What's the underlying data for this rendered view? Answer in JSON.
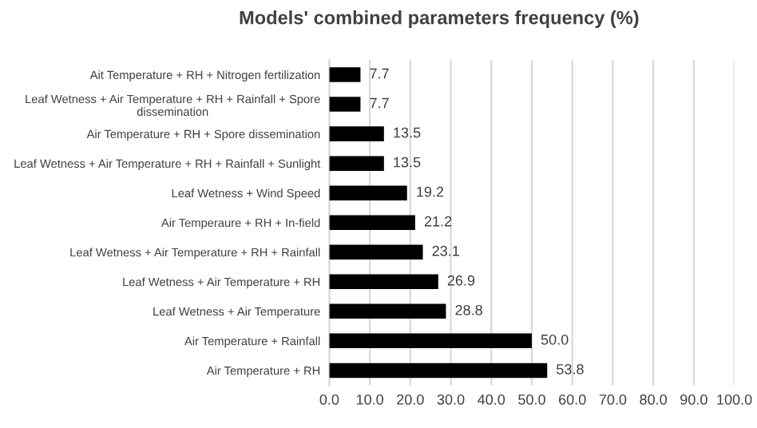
{
  "chart_data": {
    "type": "bar",
    "orientation": "horizontal",
    "title": "Models' combined parameters frequency (%)",
    "categories": [
      "Ait Temperature + RH + Nitrogen fertilization",
      "Leaf Wetness + Air Temperature + RH + Rainfall + Spore\ndissemination",
      "Air Temperature + RH + Spore dissemination",
      "Leaf Wetness + Air Temperature + RH + Rainfall + Sunlight",
      "Leaf Wetness + Wind Speed",
      "Air Temperaure + RH + In-field",
      "Leaf Wetness + Air Temperature + RH + Rainfall",
      "Leaf Wetness + Air Temperature + RH",
      "Leaf Wetness + Air Temperature",
      "Air Temperature + Rainfall",
      "Air Temperature + RH"
    ],
    "values": [
      7.7,
      7.7,
      13.5,
      13.5,
      19.2,
      21.2,
      23.1,
      26.9,
      28.8,
      50.0,
      53.8
    ],
    "value_labels": [
      "7.7",
      "7.7",
      "13.5",
      "13.5",
      "19.2",
      "21.2",
      "23.1",
      "26.9",
      "28.8",
      "50.0",
      "53.8"
    ],
    "color": "#000000",
    "xlim": [
      0,
      100
    ],
    "xticks": [
      {
        "value": 0,
        "label": "0.0"
      },
      {
        "value": 10,
        "label": "10.0"
      },
      {
        "value": 20,
        "label": "20.0"
      },
      {
        "value": 30,
        "label": "30.0"
      },
      {
        "value": 40,
        "label": "40.0"
      },
      {
        "value": 50,
        "label": "50.0"
      },
      {
        "value": 60,
        "label": "60.0"
      },
      {
        "value": 70,
        "label": "70.0"
      },
      {
        "value": 80,
        "label": "80.0"
      },
      {
        "value": 90,
        "label": "90.0"
      },
      {
        "value": 100,
        "label": "100.0"
      }
    ],
    "grid": "x",
    "legend": false
  }
}
